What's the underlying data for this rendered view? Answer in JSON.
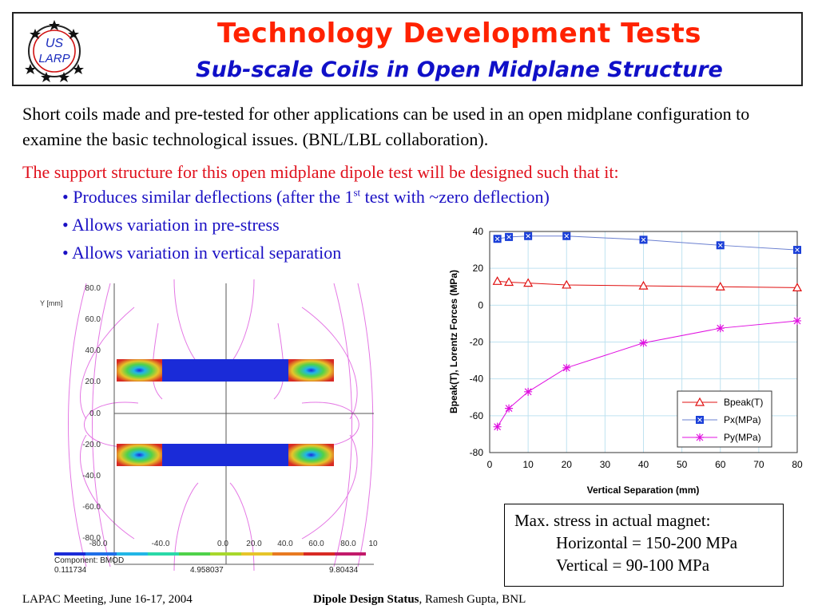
{
  "logo": {
    "line1": "US",
    "line2": "LARP"
  },
  "header": {
    "title": "Technology Development Tests",
    "subtitle": "Sub-scale Coils in Open Midplane Structure"
  },
  "intro": "Short coils made and pre-tested for other applications can be used in an open midplane configuration to examine the basic technological issues. (BNL/LBL collaboration).",
  "support": {
    "lead": "The support structure for this open midplane dipole test will be designed such that it:",
    "bullet1_pre": "• Produces similar deflections (after the 1",
    "bullet1_sup": "st",
    "bullet1_post": " test with ~zero deflection)",
    "bullet2": "• Allows variation in pre-stress",
    "bullet3": "• Allows variation in vertical separation"
  },
  "fem": {
    "y_axis_label": "Y [mm]",
    "y_ticks": [
      "80.0",
      "60.0",
      "40.0",
      "20.0",
      "0.0",
      "-20.0",
      "-40.0",
      "-60.0",
      "-80.0"
    ],
    "x_ticks": [
      "-80.0",
      "-40.0",
      "0.0",
      "20.0",
      "40.0",
      "60.0",
      "80.0",
      "10"
    ],
    "component": "Component: BMOD",
    "scale_min": "0.111734",
    "scale_mid": "4.958037",
    "scale_max": "9.80434",
    "scale_colors": [
      "#1a2bd8",
      "#1f6fe8",
      "#22b6e6",
      "#2ad9a8",
      "#4fd24a",
      "#a8d82c",
      "#e6c52a",
      "#e87a22",
      "#d82a24",
      "#c21a6a"
    ]
  },
  "chart_data": {
    "type": "line",
    "xlabel": "Vertical Separation (mm)",
    "ylabel": "Bpeak(T), Lorentz Forces (MPa)",
    "xlim": [
      0,
      80
    ],
    "ylim": [
      -80,
      40
    ],
    "x_ticks": [
      0,
      10,
      20,
      30,
      40,
      50,
      60,
      70,
      80
    ],
    "y_ticks": [
      -80,
      -60,
      -40,
      -20,
      0,
      20,
      40
    ],
    "grid": true,
    "legend_position": "bottom-right",
    "series": [
      {
        "name": "Bpeak(T)",
        "color": "#e01010",
        "marker": "triangle",
        "x": [
          2,
          5,
          10,
          20,
          40,
          60,
          80
        ],
        "y": [
          13,
          12.5,
          12,
          11,
          10.5,
          10,
          9.5
        ]
      },
      {
        "name": "Px(MPa)",
        "color": "#6a7fd0",
        "marker": "square",
        "x": [
          2,
          5,
          10,
          20,
          40,
          60,
          80
        ],
        "y": [
          36,
          37,
          37.5,
          37.5,
          35.5,
          32.5,
          30
        ]
      },
      {
        "name": "Py(MPa)",
        "color": "#e010e0",
        "marker": "asterisk",
        "x": [
          2,
          5,
          10,
          20,
          40,
          60,
          80
        ],
        "y": [
          -66,
          -56,
          -47,
          -34,
          -20.5,
          -12.5,
          -8.5
        ]
      }
    ]
  },
  "stress": {
    "line1": "Max. stress in actual magnet:",
    "line2": "Horizontal = 150-200 MPa",
    "line3": "Vertical = 90-100 MPa"
  },
  "footer": {
    "left": "LAPAC Meeting, June 16-17, 2004",
    "right_bold": "Dipole Design Status",
    "right_rest": ", Ramesh Gupta, BNL"
  }
}
